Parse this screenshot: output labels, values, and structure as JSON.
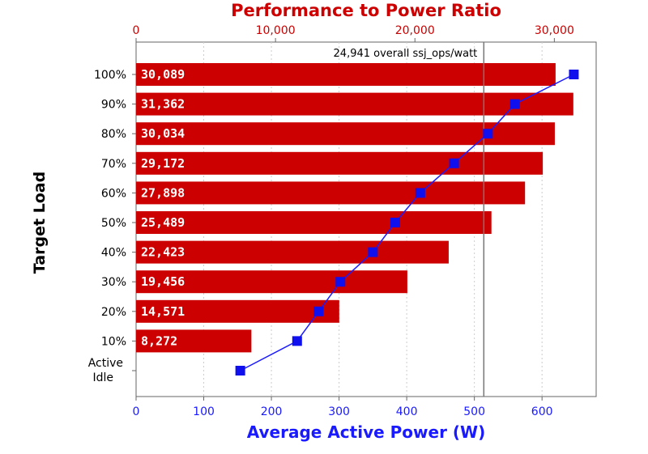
{
  "chart_data": {
    "type": "bar",
    "title": "Performance to Power Ratio",
    "xlabel": "Average Active Power (W)",
    "ylabel": "Target Load",
    "categories": [
      "100%",
      "90%",
      "80%",
      "70%",
      "60%",
      "50%",
      "40%",
      "30%",
      "20%",
      "10%",
      "Active Idle"
    ],
    "series": [
      {
        "values": [
          30089,
          31362,
          30034,
          29172,
          27898,
          25489,
          22423,
          19456,
          14571,
          8272,
          null
        ],
        "labels": [
          "30,089",
          "31,362",
          "30,034",
          "29,172",
          "27,898",
          "25,489",
          "22,423",
          "19,456",
          "14,571",
          "8,272",
          ""
        ],
        "axis": "top",
        "color": "#cc0000"
      },
      {
        "values": [
          647,
          560,
          520,
          470,
          420,
          383,
          350,
          302,
          270,
          238,
          154
        ],
        "axis": "bottom",
        "color": "#1a1aff"
      }
    ],
    "top_axis": {
      "range": [
        0,
        33000
      ],
      "ticks": [
        0,
        10000,
        20000,
        30000
      ],
      "tick_labels": [
        "0",
        "10,000",
        "20,000",
        "30,000"
      ]
    },
    "bottom_axis": {
      "range": [
        0,
        680
      ],
      "ticks": [
        0,
        100,
        200,
        300,
        400,
        500,
        600
      ],
      "tick_labels": [
        "0",
        "100",
        "200",
        "300",
        "400",
        "500",
        "600"
      ]
    },
    "reference_line": {
      "value": 24941,
      "label": "24,941 overall ssj_ops/watt"
    },
    "grid": true,
    "legend": "none"
  }
}
